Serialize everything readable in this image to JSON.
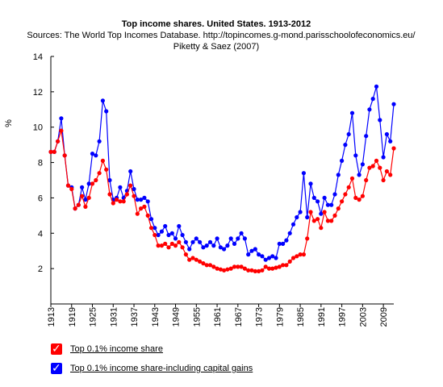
{
  "chart_data": {
    "type": "line",
    "title": "Top income shares. United States. 1913-2012",
    "subtitle_lines": [
      "Sources: The World Top Incomes Database. http://topincomes.g-mond.parisschoolofeconomics.eu/",
      "Piketty & Saez (2007)"
    ],
    "ylabel": "%",
    "ylim": [
      0,
      14
    ],
    "y_ticks": [
      2,
      4,
      6,
      8,
      10,
      12,
      14
    ],
    "xlim": [
      1913,
      2012
    ],
    "x_ticks": [
      1913,
      1919,
      1925,
      1931,
      1937,
      1943,
      1949,
      1955,
      1961,
      1967,
      1973,
      1979,
      1985,
      1991,
      1997,
      2003,
      2009
    ],
    "x_tick_labels": [
      "1913",
      "1919",
      "1925",
      "1931",
      "1937",
      "1943",
      "1949",
      "1955",
      "1961",
      "1967",
      "1973",
      "1979",
      "1985",
      "1991",
      "1997",
      "2003",
      "2009"
    ],
    "grid": false,
    "legend_position": "bottom-left",
    "series": [
      {
        "name": "Top 0.1% income share-including capital gains",
        "color": "#0000ff",
        "x": [
          1913,
          1914,
          1915,
          1916,
          1917,
          1918,
          1919,
          1920,
          1921,
          1922,
          1923,
          1924,
          1925,
          1926,
          1927,
          1928,
          1929,
          1930,
          1931,
          1932,
          1933,
          1934,
          1935,
          1936,
          1937,
          1938,
          1939,
          1940,
          1941,
          1942,
          1943,
          1944,
          1945,
          1946,
          1947,
          1948,
          1949,
          1950,
          1951,
          1952,
          1953,
          1954,
          1955,
          1956,
          1957,
          1958,
          1959,
          1960,
          1961,
          1962,
          1963,
          1964,
          1965,
          1966,
          1967,
          1968,
          1969,
          1970,
          1971,
          1972,
          1973,
          1974,
          1975,
          1976,
          1977,
          1978,
          1979,
          1980,
          1981,
          1982,
          1983,
          1984,
          1985,
          1986,
          1987,
          1988,
          1989,
          1990,
          1991,
          1992,
          1993,
          1994,
          1995,
          1996,
          1997,
          1998,
          1999,
          2000,
          2001,
          2002,
          2003,
          2004,
          2005,
          2006,
          2007,
          2008,
          2009,
          2010,
          2011,
          2012
        ],
        "y": [
          8.6,
          8.6,
          9.2,
          10.5,
          8.4,
          6.7,
          6.6,
          5.4,
          5.6,
          6.6,
          5.9,
          6.8,
          8.5,
          8.4,
          9.2,
          11.5,
          10.9,
          7.0,
          5.9,
          6.0,
          6.6,
          6.0,
          6.4,
          7.5,
          6.5,
          5.9,
          5.9,
          6.0,
          5.8,
          4.8,
          4.3,
          3.9,
          4.1,
          4.4,
          3.9,
          4.0,
          3.7,
          4.4,
          3.9,
          3.5,
          3.1,
          3.5,
          3.7,
          3.5,
          3.2,
          3.3,
          3.5,
          3.3,
          3.7,
          3.2,
          3.1,
          3.3,
          3.7,
          3.4,
          3.7,
          4.0,
          3.7,
          2.8,
          3.0,
          3.1,
          2.8,
          2.7,
          2.5,
          2.6,
          2.7,
          2.6,
          3.4,
          3.4,
          3.6,
          4.0,
          4.5,
          4.9,
          5.2,
          7.4,
          4.9,
          6.8,
          6.0,
          5.8,
          5.1,
          6.0,
          5.6,
          5.6,
          6.2,
          7.3,
          8.1,
          9.0,
          9.6,
          10.8,
          8.4,
          7.3,
          7.9,
          9.5,
          11.0,
          11.6,
          12.3,
          10.4,
          8.3,
          9.6,
          9.2,
          11.3
        ]
      },
      {
        "name": "Top 0.1% income share",
        "color": "#ff0000",
        "x": [
          1913,
          1914,
          1915,
          1916,
          1917,
          1918,
          1919,
          1920,
          1921,
          1922,
          1923,
          1924,
          1925,
          1926,
          1927,
          1928,
          1929,
          1930,
          1931,
          1932,
          1933,
          1934,
          1935,
          1936,
          1937,
          1938,
          1939,
          1940,
          1941,
          1942,
          1943,
          1944,
          1945,
          1946,
          1947,
          1948,
          1949,
          1950,
          1951,
          1952,
          1953,
          1954,
          1955,
          1956,
          1957,
          1958,
          1959,
          1960,
          1961,
          1962,
          1963,
          1964,
          1965,
          1966,
          1967,
          1968,
          1969,
          1970,
          1971,
          1972,
          1973,
          1974,
          1975,
          1976,
          1977,
          1978,
          1979,
          1980,
          1981,
          1982,
          1983,
          1984,
          1985,
          1986,
          1987,
          1988,
          1989,
          1990,
          1991,
          1992,
          1993,
          1994,
          1995,
          1996,
          1997,
          1998,
          1999,
          2000,
          2001,
          2002,
          2003,
          2004,
          2005,
          2006,
          2007,
          2008,
          2009,
          2010,
          2011,
          2012
        ],
        "y": [
          8.6,
          8.6,
          9.2,
          9.8,
          8.4,
          6.7,
          6.5,
          5.4,
          5.6,
          6.1,
          5.5,
          6.0,
          6.8,
          7.0,
          7.4,
          8.1,
          7.6,
          6.2,
          5.7,
          5.9,
          5.8,
          5.8,
          6.2,
          6.7,
          6.1,
          5.1,
          5.4,
          5.5,
          5.0,
          4.3,
          3.9,
          3.3,
          3.3,
          3.4,
          3.2,
          3.4,
          3.3,
          3.5,
          3.2,
          2.8,
          2.5,
          2.6,
          2.5,
          2.4,
          2.3,
          2.2,
          2.2,
          2.1,
          2.0,
          1.95,
          1.9,
          1.95,
          2.0,
          2.1,
          2.1,
          2.1,
          2.0,
          1.9,
          1.9,
          1.85,
          1.85,
          1.9,
          2.1,
          2.0,
          2.0,
          2.05,
          2.1,
          2.2,
          2.2,
          2.4,
          2.6,
          2.7,
          2.8,
          2.8,
          3.7,
          5.2,
          4.7,
          4.8,
          4.3,
          5.2,
          4.7,
          4.7,
          5.0,
          5.4,
          5.8,
          6.2,
          6.6,
          7.1,
          6.0,
          5.9,
          6.1,
          7.0,
          7.7,
          7.8,
          8.1,
          7.7,
          7.0,
          7.5,
          7.3,
          8.8
        ]
      }
    ]
  },
  "legend": [
    {
      "label": "Top 0.1% income share",
      "color": "#ff0000"
    },
    {
      "label": "Top 0.1% income share-including capital gains",
      "color": "#0000ff"
    }
  ]
}
